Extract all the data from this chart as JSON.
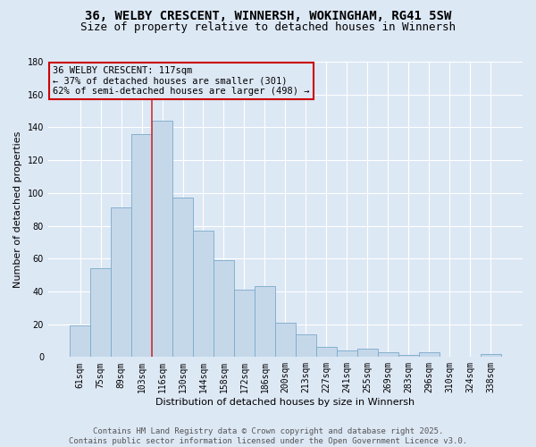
{
  "title_line1": "36, WELBY CRESCENT, WINNERSH, WOKINGHAM, RG41 5SW",
  "title_line2": "Size of property relative to detached houses in Winnersh",
  "xlabel": "Distribution of detached houses by size in Winnersh",
  "ylabel": "Number of detached properties",
  "categories": [
    "61sqm",
    "75sqm",
    "89sqm",
    "103sqm",
    "116sqm",
    "130sqm",
    "144sqm",
    "158sqm",
    "172sqm",
    "186sqm",
    "200sqm",
    "213sqm",
    "227sqm",
    "241sqm",
    "255sqm",
    "269sqm",
    "283sqm",
    "296sqm",
    "310sqm",
    "324sqm",
    "338sqm"
  ],
  "values": [
    19,
    54,
    91,
    136,
    144,
    97,
    77,
    59,
    41,
    43,
    21,
    14,
    6,
    4,
    5,
    3,
    1,
    3,
    0,
    0,
    2
  ],
  "bar_color": "#c5d8ea",
  "bar_edge_color": "#7aaac8",
  "vline_index": 4,
  "vline_color": "#cc3333",
  "annotation_text": "36 WELBY CRESCENT: 117sqm\n← 37% of detached houses are smaller (301)\n62% of semi-detached houses are larger (498) →",
  "box_edge_color": "#cc0000",
  "box_face_color": "#dde8f5",
  "ylim": [
    0,
    180
  ],
  "yticks": [
    0,
    20,
    40,
    60,
    80,
    100,
    120,
    140,
    160,
    180
  ],
  "background_color": "#dde8f5",
  "grid_color": "#ffffff",
  "footer_text": "Contains HM Land Registry data © Crown copyright and database right 2025.\nContains public sector information licensed under the Open Government Licence v3.0.",
  "title_fontsize": 10,
  "subtitle_fontsize": 9,
  "axis_label_fontsize": 8,
  "tick_fontsize": 7,
  "annotation_fontsize": 7.5,
  "footer_fontsize": 6.5
}
